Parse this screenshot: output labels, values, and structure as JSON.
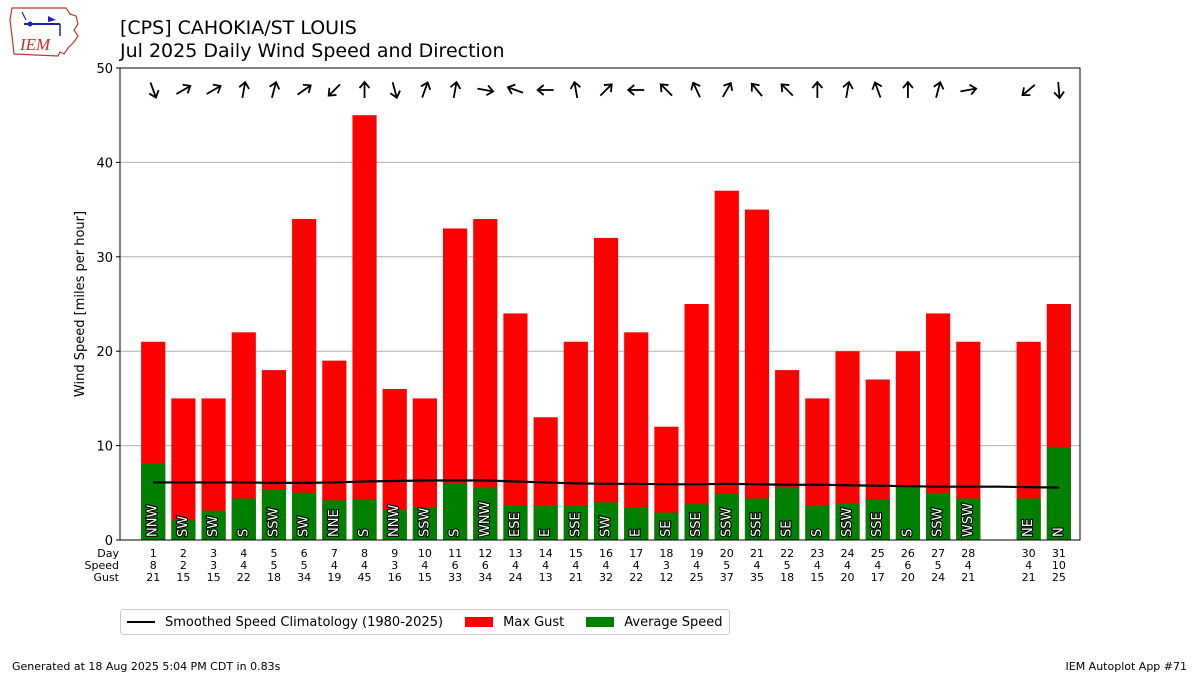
{
  "header": {
    "logo_text": "IEM",
    "title_line1": "[CPS] CAHOKIA/ST LOUIS",
    "title_line2": "Jul 2025 Daily Wind Speed and Direction"
  },
  "footer": {
    "generated": "Generated at 18 Aug 2025 5:04 PM CDT in 0.83s",
    "app": "IEM Autoplot App #71"
  },
  "colors": {
    "gust": "#ff0000",
    "average": "#008000",
    "climatology": "#000000",
    "grid": "#b0b0b0"
  },
  "chart_data": {
    "type": "bar",
    "title": "[CPS] CAHOKIA/ST LOUIS\nJul 2025 Daily Wind Speed and Direction",
    "ylabel": "Wind Speed [miles per hour]",
    "xlabel": "",
    "ylim": [
      0,
      50
    ],
    "yticks": [
      0,
      10,
      20,
      30,
      40,
      50
    ],
    "grid": "y",
    "row_labels": [
      "Day",
      "Speed",
      "Gust"
    ],
    "legend": {
      "placement": "below",
      "entries": [
        "Smoothed Speed Climatology (1980-2025)",
        "Max Gust",
        "Average Speed"
      ]
    },
    "days": [
      1,
      2,
      3,
      4,
      5,
      6,
      7,
      8,
      9,
      10,
      11,
      12,
      13,
      14,
      15,
      16,
      17,
      18,
      19,
      20,
      21,
      22,
      23,
      24,
      25,
      26,
      27,
      28,
      30,
      31
    ],
    "series": [
      {
        "name": "Max Gust",
        "values": [
          21,
          15,
          15,
          22,
          18,
          34,
          19,
          45,
          16,
          15,
          33,
          34,
          24,
          13,
          21,
          32,
          22,
          12,
          25,
          37,
          35,
          18,
          15,
          20,
          17,
          20,
          24,
          21,
          21,
          25
        ]
      },
      {
        "name": "Average Speed",
        "values": [
          8.1,
          2.1,
          3.1,
          4.4,
          5.3,
          5.0,
          4.2,
          4.3,
          3.2,
          3.5,
          6.0,
          5.5,
          3.7,
          3.6,
          3.6,
          4.0,
          3.5,
          2.9,
          3.8,
          4.9,
          4.4,
          5.5,
          3.6,
          3.9,
          4.3,
          5.6,
          5.0,
          4.4,
          4.4,
          9.8
        ]
      },
      {
        "name": "Smoothed Speed Climatology (1980-2025)",
        "x": [
          1,
          2,
          3,
          4,
          5,
          6,
          7,
          8,
          9,
          10,
          11,
          12,
          13,
          14,
          15,
          16,
          17,
          18,
          19,
          20,
          21,
          22,
          23,
          24,
          25,
          26,
          27,
          28,
          29,
          30,
          31
        ],
        "values": [
          6.1,
          6.1,
          6.1,
          6.1,
          6.05,
          6.05,
          6.1,
          6.2,
          6.25,
          6.3,
          6.3,
          6.3,
          6.2,
          6.1,
          6.0,
          5.95,
          5.95,
          5.9,
          5.9,
          5.95,
          5.9,
          5.85,
          5.85,
          5.8,
          5.75,
          5.7,
          5.65,
          5.65,
          5.65,
          5.6,
          5.55
        ]
      }
    ],
    "speed_row": [
      8,
      2,
      3,
      4,
      5,
      5,
      4,
      4,
      3,
      4,
      6,
      6,
      4,
      4,
      4,
      4,
      4,
      3,
      4,
      5,
      4,
      5,
      4,
      4,
      4,
      6,
      5,
      4,
      4,
      10
    ],
    "gust_row": [
      21,
      15,
      15,
      22,
      18,
      34,
      19,
      45,
      16,
      15,
      33,
      34,
      24,
      13,
      21,
      32,
      22,
      12,
      25,
      37,
      35,
      18,
      15,
      20,
      17,
      20,
      24,
      21,
      21,
      25
    ],
    "direction_labels": [
      "NNW",
      "SW",
      "SW",
      "S",
      "SSW",
      "SW",
      "NNE",
      "S",
      "NNW",
      "SSW",
      "S",
      "WNW",
      "ESE",
      "E",
      "SSE",
      "SW",
      "E",
      "SE",
      "SSE",
      "SSW",
      "SSE",
      "SE",
      "S",
      "SSW",
      "SSE",
      "S",
      "SSW",
      "WSW",
      "NE",
      "N"
    ],
    "arrow_angles_deg": [
      160,
      60,
      60,
      10,
      15,
      55,
      225,
      0,
      165,
      20,
      10,
      100,
      290,
      270,
      350,
      45,
      270,
      315,
      335,
      30,
      320,
      315,
      0,
      10,
      340,
      0,
      15,
      80,
      230,
      175
    ]
  }
}
